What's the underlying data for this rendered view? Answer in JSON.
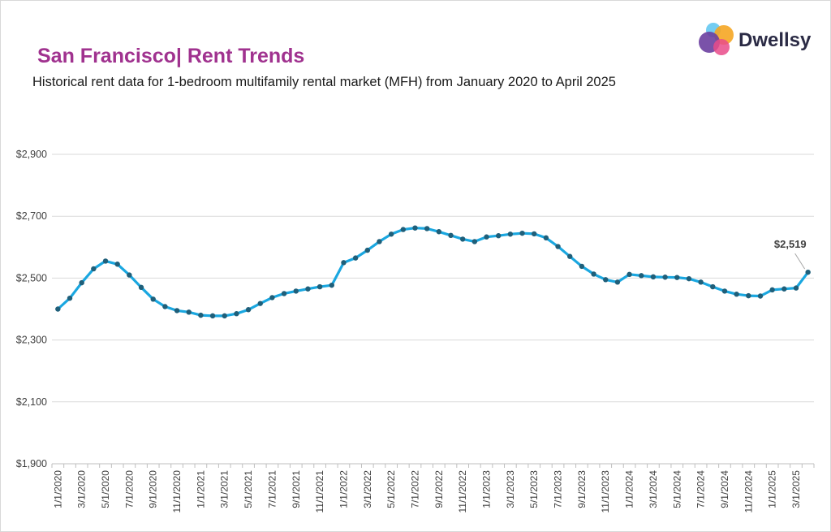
{
  "header": {
    "title": "San Francisco| Rent Trends",
    "subtitle": "Historical rent data for 1-bedroom multifamily rental market (MFH) from January 2020 to April 2025"
  },
  "brand": {
    "name": "Dwellsy",
    "logo_colors": [
      "#5bc4f0",
      "#f5a623",
      "#6b3fa0",
      "#e94b8a"
    ]
  },
  "chart_data": {
    "type": "line",
    "title": "San Francisco| Rent Trends",
    "subtitle": "Historical rent data for 1-bedroom multifamily rental market (MFH) from January 2020 to April 2025",
    "xlabel": "",
    "ylabel": "",
    "ylim": [
      1900,
      2900
    ],
    "yticks": [
      "$1,900",
      "$2,100",
      "$2,300",
      "$2,500",
      "$2,700",
      "$2,900"
    ],
    "ytick_values": [
      1900,
      2100,
      2300,
      2500,
      2700,
      2900
    ],
    "xtick_labels": [
      "1/1/2020",
      "3/1/2020",
      "5/1/2020",
      "7/1/2020",
      "9/1/2020",
      "11/1/2020",
      "1/1/2021",
      "3/1/2021",
      "5/1/2021",
      "7/1/2021",
      "9/1/2021",
      "11/1/2021",
      "1/1/2022",
      "3/1/2022",
      "5/1/2022",
      "7/1/2022",
      "9/1/2022",
      "11/1/2022",
      "1/1/2023",
      "3/1/2023",
      "5/1/2023",
      "7/1/2023",
      "9/1/2023",
      "11/1/2023",
      "1/1/2024",
      "3/1/2024",
      "5/1/2024",
      "7/1/2024",
      "9/1/2024",
      "11/1/2024",
      "1/1/2025",
      "3/1/2025"
    ],
    "grid": true,
    "line_color": "#1aa7e0",
    "marker_color": "#1f5f7a",
    "series": [
      {
        "x": [
          "2020-01",
          "2020-02",
          "2020-03",
          "2020-04",
          "2020-05",
          "2020-06",
          "2020-07",
          "2020-08",
          "2020-09",
          "2020-10",
          "2020-11",
          "2020-12",
          "2021-01",
          "2021-02",
          "2021-03",
          "2021-04",
          "2021-05",
          "2021-06",
          "2021-07",
          "2021-08",
          "2021-09",
          "2021-10",
          "2021-11",
          "2021-12",
          "2022-01",
          "2022-02",
          "2022-03",
          "2022-04",
          "2022-05",
          "2022-06",
          "2022-07",
          "2022-08",
          "2022-09",
          "2022-10",
          "2022-11",
          "2022-12",
          "2023-01",
          "2023-02",
          "2023-03",
          "2023-04",
          "2023-05",
          "2023-06",
          "2023-07",
          "2023-08",
          "2023-09",
          "2023-10",
          "2023-11",
          "2023-12",
          "2024-01",
          "2024-02",
          "2024-03",
          "2024-04",
          "2024-05",
          "2024-06",
          "2024-07",
          "2024-08",
          "2024-09",
          "2024-10",
          "2024-11",
          "2024-12",
          "2025-01",
          "2025-02",
          "2025-03",
          "2025-04"
        ],
        "values": [
          2400,
          2435,
          2485,
          2530,
          2555,
          2545,
          2510,
          2470,
          2432,
          2408,
          2395,
          2390,
          2380,
          2378,
          2378,
          2385,
          2398,
          2418,
          2437,
          2450,
          2458,
          2465,
          2472,
          2477,
          2550,
          2565,
          2590,
          2618,
          2642,
          2657,
          2662,
          2660,
          2650,
          2638,
          2626,
          2618,
          2633,
          2637,
          2642,
          2645,
          2643,
          2630,
          2602,
          2570,
          2538,
          2513,
          2495,
          2487,
          2512,
          2508,
          2504,
          2503,
          2502,
          2498,
          2487,
          2472,
          2458,
          2448,
          2443,
          2442,
          2462,
          2465,
          2468,
          2519
        ]
      }
    ],
    "annotation": {
      "text": "$2,519",
      "x": "2025-04",
      "value": 2519
    }
  }
}
